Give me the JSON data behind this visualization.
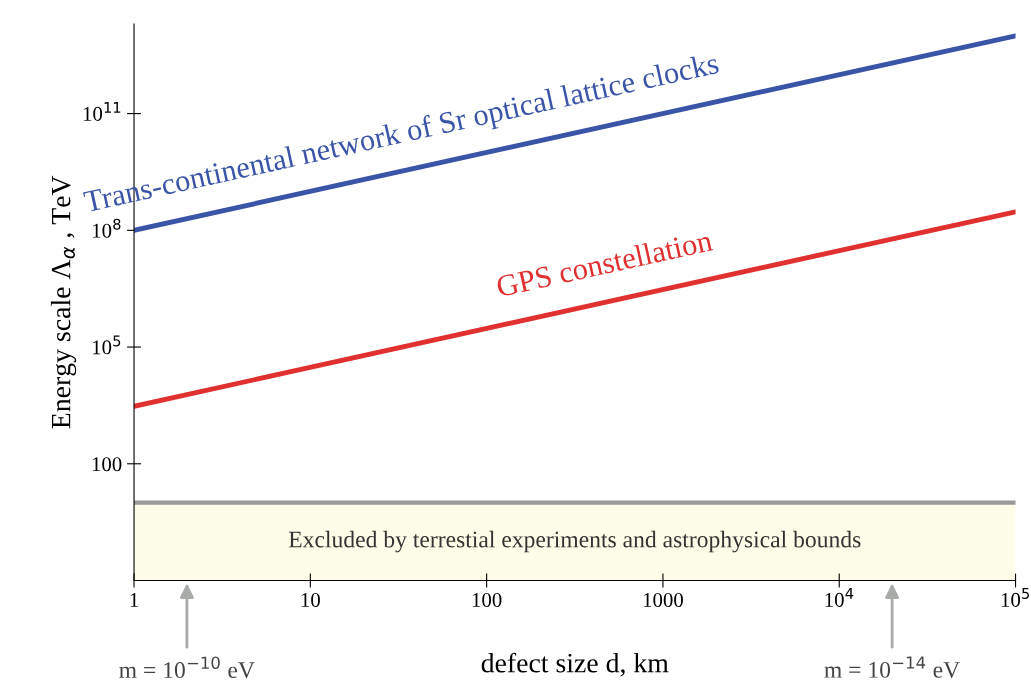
{
  "chart_data": {
    "type": "line",
    "xlabel": "defect size d, km",
    "ylabel": "Energy scale Λ$_{α}$ , TeV",
    "log": "xy",
    "x": [
      1,
      100000
    ],
    "series": [
      {
        "name": "Trans-continental network of Sr optical lattice clocks",
        "color": "#3a55a8",
        "values": [
          100000000,
          10000000000000
        ]
      },
      {
        "name": "GPS constellation",
        "color": "#e03030",
        "values": [
          3000,
          300000000
        ]
      }
    ],
    "xlim": [
      1,
      100000
    ],
    "ylim": [
      0.1,
      20000000000000
    ],
    "xticks": [
      1,
      10,
      100,
      1000,
      {
        "value": 10000,
        "label": "10$^{4}$"
      },
      {
        "value": 100000,
        "label": "10$^{5}$"
      }
    ],
    "yticks": [
      100,
      {
        "value": 100000,
        "label": "10$^{5}$"
      },
      {
        "value": 100000000,
        "label": "10$^{8}$"
      },
      {
        "value": 100000000000,
        "label": "10$^{11}$"
      }
    ],
    "grid": false,
    "legend": false,
    "bands": [
      {
        "axis": "y",
        "from": 0.1,
        "to": 10,
        "label": "Excluded by terrestial experiments and astrophysical bounds",
        "color": "#fdfde8"
      }
    ],
    "ref_lines": [
      {
        "axis": "y",
        "value": 10,
        "color": "#999999"
      }
    ],
    "annotations": [
      "m = 10$^{−10}$ eV",
      "m = 10$^{−14}$ eV"
    ]
  }
}
